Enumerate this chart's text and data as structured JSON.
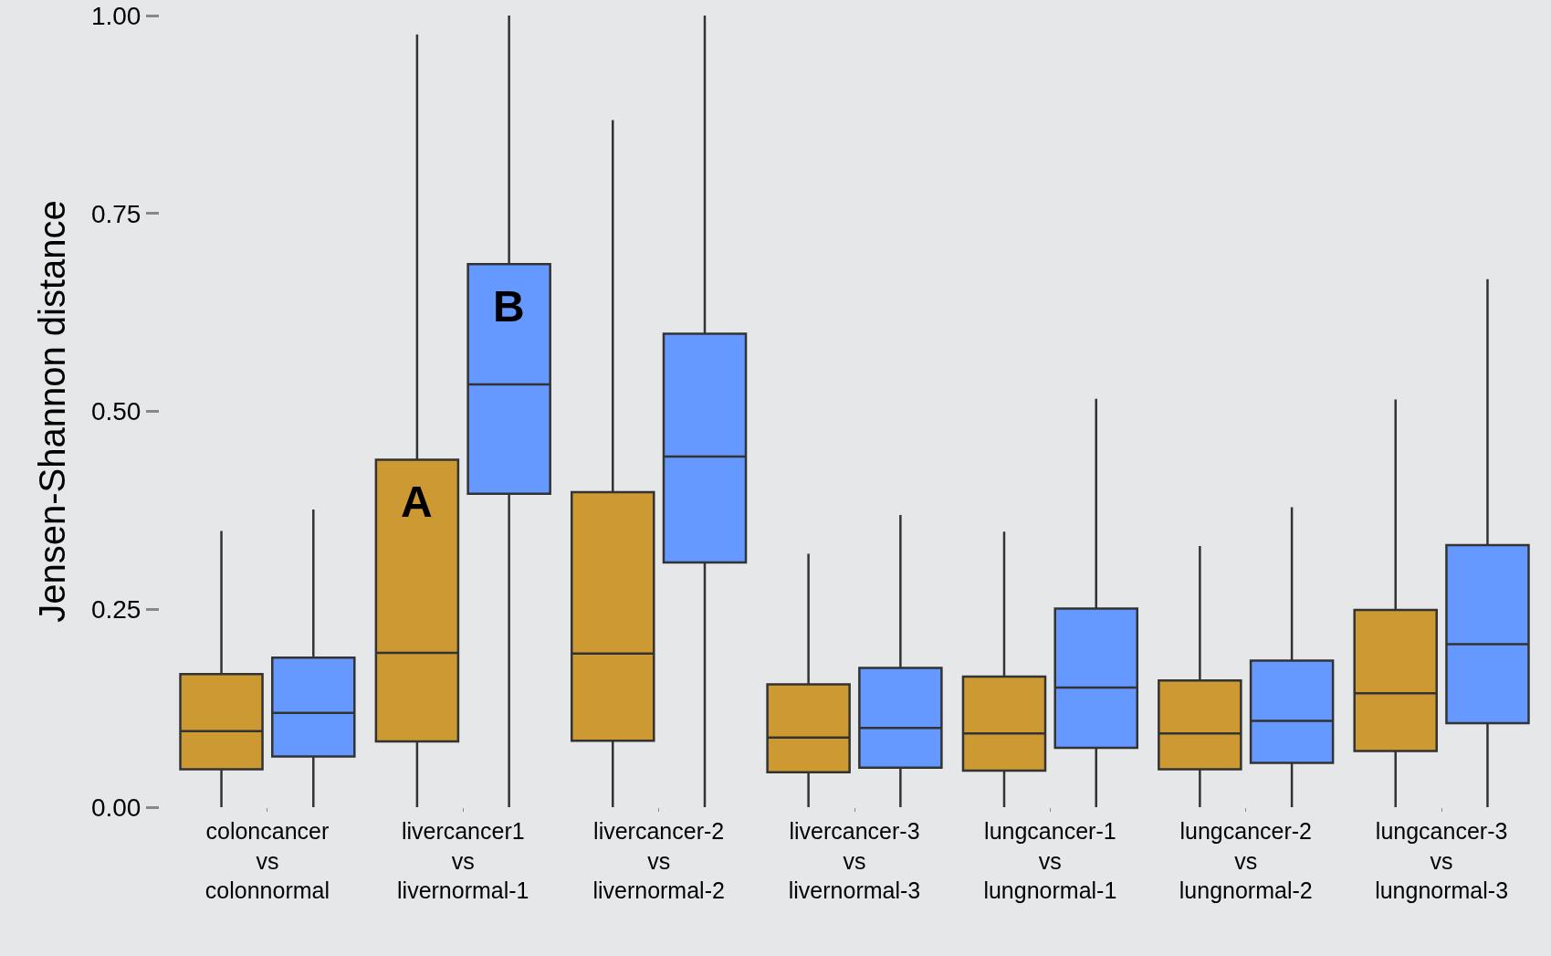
{
  "chart_data": {
    "type": "box",
    "ylabel": "Jensen-Shannon distance",
    "categories": [
      "coloncancer\nvs\ncolonnormal",
      "livercancer1\nvs\nlivernormal-1",
      "livercancer-2\nvs\nlivernormal-2",
      "livercancer-3\nvs\nlivernormal-3",
      "lungcancer-1\nvs\nlungnormal-1",
      "lungcancer-2\nvs\nlungnormal-2",
      "lungcancer-3\nvs\nlungnormal-3"
    ],
    "series": [
      {
        "color": "#cc9933",
        "boxes": [
          {
            "low": 0,
            "q1": 0.048,
            "median": 0.096,
            "q3": 0.168,
            "high": 0.349
          },
          {
            "low": 0,
            "q1": 0.083,
            "median": 0.195,
            "q3": 0.439,
            "high": 0.976
          },
          {
            "low": 0,
            "q1": 0.084,
            "median": 0.194,
            "q3": 0.398,
            "high": 0.868
          },
          {
            "low": 0,
            "q1": 0.044,
            "median": 0.088,
            "q3": 0.155,
            "high": 0.32
          },
          {
            "low": 0,
            "q1": 0.046,
            "median": 0.093,
            "q3": 0.165,
            "high": 0.348
          },
          {
            "low": 0,
            "q1": 0.048,
            "median": 0.093,
            "q3": 0.16,
            "high": 0.33
          },
          {
            "low": 0,
            "q1": 0.071,
            "median": 0.144,
            "q3": 0.249,
            "high": 0.515
          }
        ]
      },
      {
        "color": "#6699ff",
        "boxes": [
          {
            "low": 0,
            "q1": 0.064,
            "median": 0.119,
            "q3": 0.189,
            "high": 0.376
          },
          {
            "low": 0,
            "q1": 0.396,
            "median": 0.534,
            "q3": 0.686,
            "high": 1.0
          },
          {
            "low": 0,
            "q1": 0.309,
            "median": 0.443,
            "q3": 0.598,
            "high": 1.0
          },
          {
            "low": 0,
            "q1": 0.05,
            "median": 0.1,
            "q3": 0.176,
            "high": 0.369
          },
          {
            "low": 0,
            "q1": 0.075,
            "median": 0.151,
            "q3": 0.251,
            "high": 0.516
          },
          {
            "low": 0,
            "q1": 0.056,
            "median": 0.109,
            "q3": 0.185,
            "high": 0.379
          },
          {
            "low": 0,
            "q1": 0.106,
            "median": 0.206,
            "q3": 0.331,
            "high": 0.667
          }
        ]
      }
    ],
    "annotations": [
      "A",
      "B"
    ],
    "ylim": [
      0,
      1
    ],
    "yticks": [
      {
        "value": 0,
        "label": "0.00"
      },
      {
        "value": 0.25,
        "label": "0.25"
      },
      {
        "value": 0.5,
        "label": "0.50"
      },
      {
        "value": 0.75,
        "label": "0.75"
      },
      {
        "value": 1,
        "label": "1.00"
      }
    ],
    "grid": false
  }
}
